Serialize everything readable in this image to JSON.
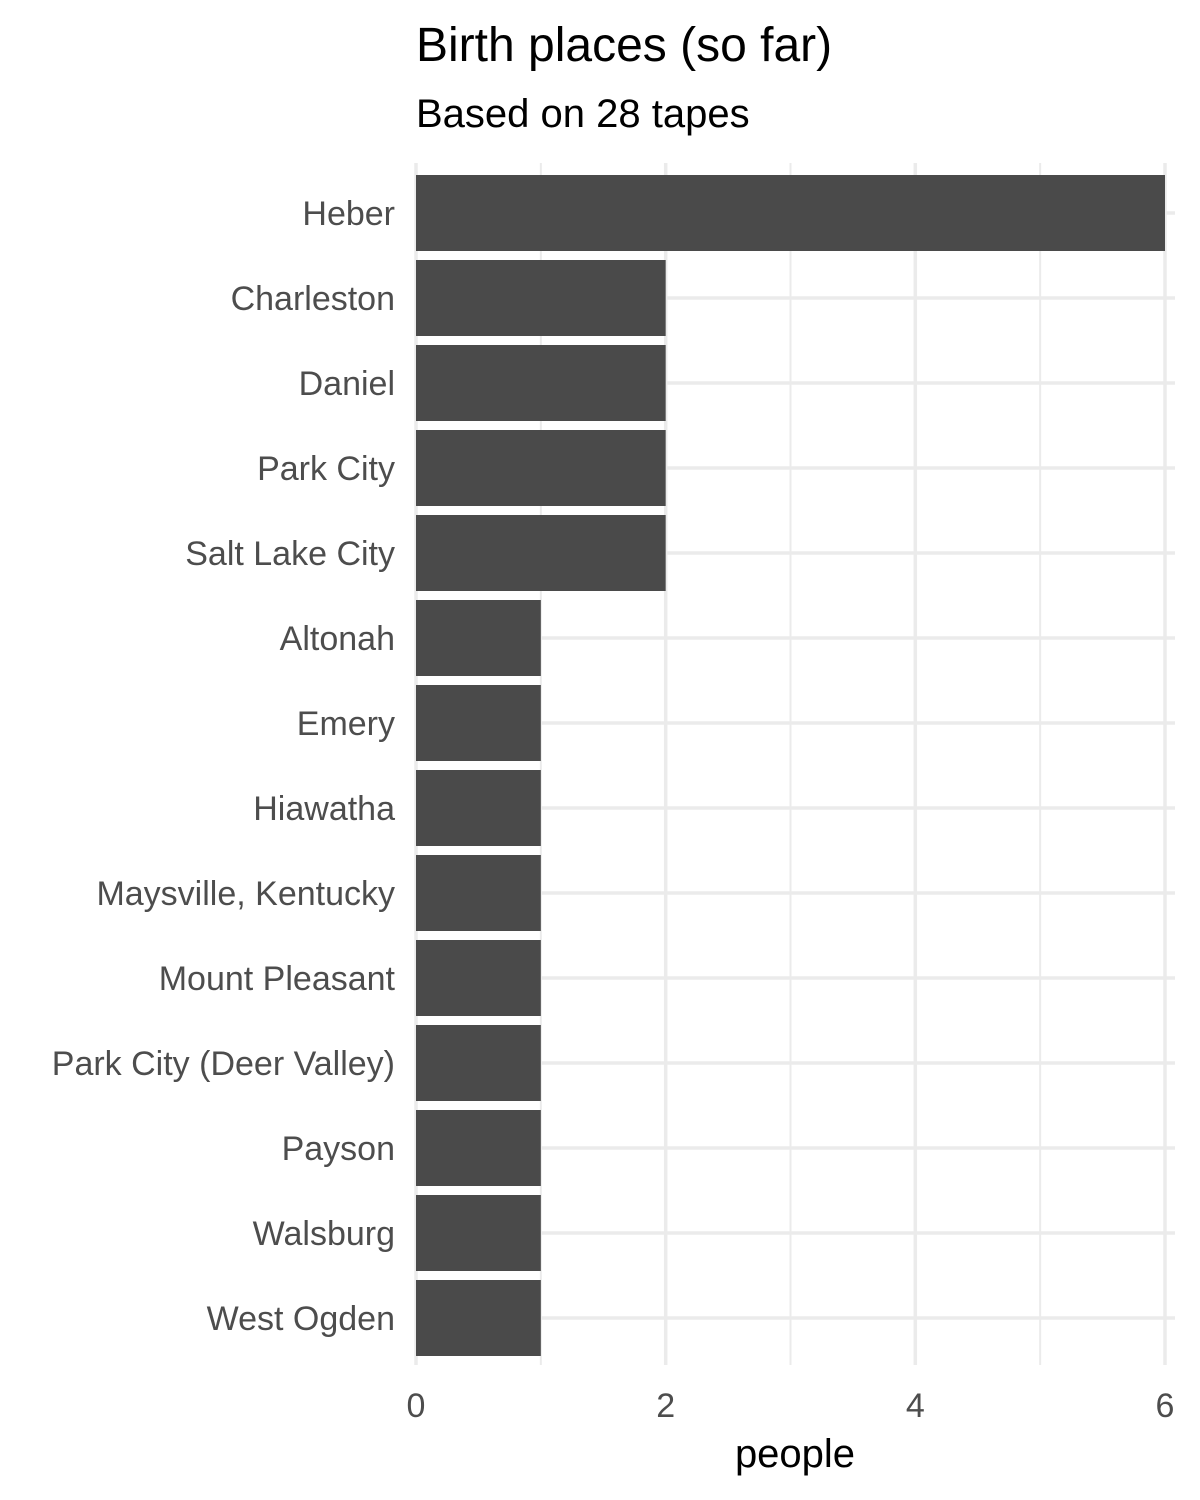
{
  "chart_data": {
    "type": "bar",
    "orientation": "horizontal",
    "title": "Birth places (so far)",
    "subtitle": "Based on 28 tapes",
    "xlabel": "people",
    "ylabel": "",
    "categories": [
      "Heber",
      "Charleston",
      "Daniel",
      "Park City",
      "Salt Lake City",
      "Altonah",
      "Emery",
      "Hiawatha",
      "Maysville, Kentucky",
      "Mount Pleasant",
      "Park City (Deer Valley)",
      "Payson",
      "Walsburg",
      "West Ogden"
    ],
    "values": [
      6,
      2,
      2,
      2,
      2,
      1,
      1,
      1,
      1,
      1,
      1,
      1,
      1,
      1
    ],
    "xlim": [
      0,
      6
    ],
    "x_ticks": [
      0,
      2,
      4,
      6
    ],
    "grid": true,
    "legend": "none",
    "bar_color": "#4a4a4a",
    "grid_color": "#ebebeb",
    "tick_label_color": "#4d4d4d"
  }
}
